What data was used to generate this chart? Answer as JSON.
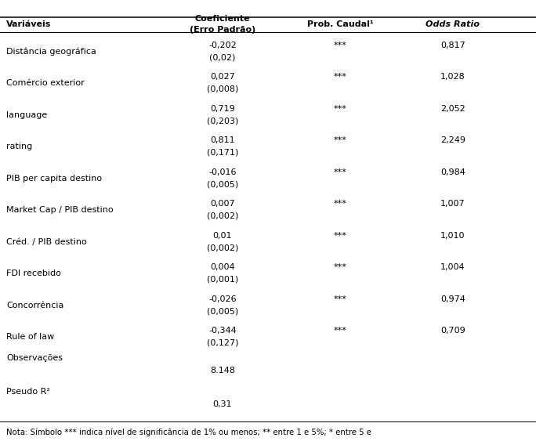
{
  "rows": [
    {
      "variable": "Distância geográfica",
      "coef": "-0,202",
      "se": "(0,02)",
      "prob": "***",
      "odds": "0,817"
    },
    {
      "variable": "Comércio exterior",
      "coef": "0,027",
      "se": "(0,008)",
      "prob": "***",
      "odds": "1,028"
    },
    {
      "variable": "language",
      "coef": "0,719",
      "se": "(0,203)",
      "prob": "***",
      "odds": "2,052"
    },
    {
      "variable": "rating",
      "coef": "0,811",
      "se": "(0,171)",
      "prob": "***",
      "odds": "2,249"
    },
    {
      "variable": "PIB per capita destino",
      "coef": "-0,016",
      "se": "(0,005)",
      "prob": "***",
      "odds": "0,984"
    },
    {
      "variable": "Market Cap / PIB destino",
      "coef": "0,007",
      "se": "(0,002)",
      "prob": "***",
      "odds": "1,007"
    },
    {
      "variable": "Créd. / PIB destino",
      "coef": "0,01",
      "se": "(0,002)",
      "prob": "***",
      "odds": "1,010"
    },
    {
      "variable": "FDI recebido",
      "coef": "0,004",
      "se": "(0,001)",
      "prob": "***",
      "odds": "1,004"
    },
    {
      "variable": "Concorrência",
      "coef": "-0,026",
      "se": "(0,005)",
      "prob": "***",
      "odds": "0,974"
    },
    {
      "variable": "Rule of law",
      "coef": "-0,344",
      "se": "(0,127)",
      "prob": "***",
      "odds": "0,709"
    }
  ],
  "summary_rows": [
    {
      "label": "Observações",
      "value": "8.148"
    },
    {
      "label": "Pseudo R²",
      "value": "0,31"
    }
  ],
  "note": "Nota: Símbolo *** indica nível de significância de 1% ou menos; ** entre 1 e 5%; * entre 5 e",
  "col_var": 0.012,
  "col_coef": 0.415,
  "col_prob": 0.635,
  "col_odds": 0.845,
  "font_size": 8.0,
  "bg": "#ffffff",
  "fg": "#000000"
}
